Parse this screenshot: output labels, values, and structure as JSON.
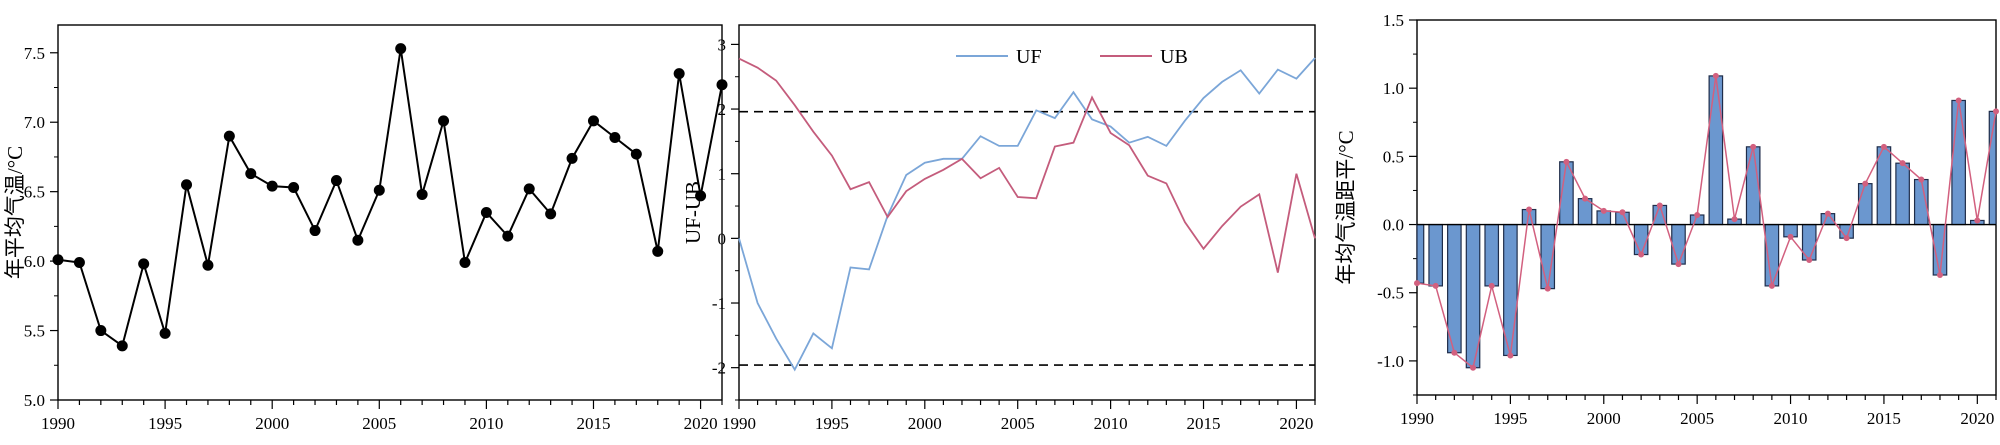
{
  "chart_data": [
    {
      "type": "line",
      "ylabel": "年平均气温/°C",
      "xlim": [
        1990,
        2021
      ],
      "ylim": [
        5.0,
        7.7
      ],
      "xticks": [
        1990,
        1995,
        2000,
        2005,
        2010,
        2015,
        2020
      ],
      "yticks": [
        5.0,
        5.5,
        6.0,
        6.5,
        7.0,
        7.5
      ],
      "x": [
        1990,
        1991,
        1992,
        1993,
        1994,
        1995,
        1996,
        1997,
        1998,
        1999,
        2000,
        2001,
        2002,
        2003,
        2004,
        2005,
        2006,
        2007,
        2008,
        2009,
        2010,
        2011,
        2012,
        2013,
        2014,
        2015,
        2016,
        2017,
        2018,
        2019,
        2020,
        2021
      ],
      "series": [
        {
          "values": [
            6.01,
            5.99,
            5.5,
            5.39,
            5.98,
            5.48,
            6.55,
            5.97,
            6.9,
            6.63,
            6.54,
            6.53,
            6.22,
            6.58,
            6.15,
            6.51,
            7.53,
            6.48,
            7.01,
            5.99,
            6.35,
            6.18,
            6.52,
            6.34,
            6.74,
            7.01,
            6.89,
            6.77,
            6.07,
            7.35,
            6.47,
            7.27
          ],
          "color": "#000000"
        }
      ],
      "grid": false
    },
    {
      "type": "line",
      "ylabel": "UF-UB",
      "xlim": [
        1990,
        2021
      ],
      "ylim": [
        -2.5,
        3.3
      ],
      "xticks": [
        1990,
        1995,
        2000,
        2005,
        2010,
        2015,
        2020
      ],
      "yticks": [
        -2,
        -1,
        0,
        1,
        2,
        3
      ],
      "x": [
        1990,
        1991,
        1992,
        1993,
        1994,
        1995,
        1996,
        1997,
        1998,
        1999,
        2000,
        2001,
        2002,
        2003,
        2004,
        2005,
        2006,
        2007,
        2008,
        2009,
        2010,
        2011,
        2012,
        2013,
        2014,
        2015,
        2016,
        2017,
        2018,
        2019,
        2020,
        2021
      ],
      "series": [
        {
          "name": "UF",
          "color": "#7ba6d8",
          "values": [
            0.0,
            -1.0,
            -1.55,
            -2.03,
            -1.47,
            -1.7,
            -0.45,
            -0.48,
            0.35,
            0.98,
            1.17,
            1.23,
            1.23,
            1.58,
            1.43,
            1.43,
            1.98,
            1.86,
            2.26,
            1.84,
            1.73,
            1.48,
            1.57,
            1.43,
            1.82,
            2.17,
            2.42,
            2.6,
            2.24,
            2.61,
            2.47,
            2.79
          ]
        },
        {
          "name": "UB",
          "color": "#c45c7c",
          "values": [
            2.78,
            2.64,
            2.44,
            2.06,
            1.65,
            1.28,
            0.76,
            0.87,
            0.33,
            0.73,
            0.92,
            1.06,
            1.23,
            0.93,
            1.09,
            0.64,
            0.62,
            1.42,
            1.48,
            2.18,
            1.63,
            1.44,
            0.97,
            0.85,
            0.25,
            -0.16,
            0.19,
            0.49,
            0.68,
            -0.53,
            1.0,
            0.0
          ]
        }
      ],
      "reference_lines": [
        1.96,
        -1.96
      ],
      "legend": {
        "placement": "top-center",
        "entries": [
          "UF",
          "UB"
        ]
      },
      "grid": false
    },
    {
      "type": "bar",
      "ylabel": "年均气温距平/°C",
      "xlim": [
        1990,
        2021
      ],
      "ylim": [
        -1.25,
        1.5
      ],
      "xticks": [
        1990,
        1995,
        2000,
        2005,
        2010,
        2015,
        2020
      ],
      "yticks": [
        -1.0,
        -0.5,
        0.0,
        0.5,
        1.0,
        1.5
      ],
      "x": [
        1990,
        1991,
        1992,
        1993,
        1994,
        1995,
        1996,
        1997,
        1998,
        1999,
        2000,
        2001,
        2002,
        2003,
        2004,
        2005,
        2006,
        2007,
        2008,
        2009,
        2010,
        2011,
        2012,
        2013,
        2014,
        2015,
        2016,
        2017,
        2018,
        2019,
        2020,
        2021
      ],
      "values": [
        -0.43,
        -0.45,
        -0.94,
        -1.05,
        -0.45,
        -0.96,
        0.11,
        -0.47,
        0.46,
        0.19,
        0.1,
        0.09,
        -0.22,
        0.14,
        -0.29,
        0.07,
        1.09,
        0.04,
        0.57,
        -0.45,
        -0.09,
        -0.26,
        0.08,
        -0.1,
        0.3,
        0.57,
        0.45,
        0.33,
        -0.37,
        0.91,
        0.03,
        0.83
      ],
      "bar_color": "#6b97cf",
      "line_color": "#d2607f",
      "grid": false
    }
  ]
}
